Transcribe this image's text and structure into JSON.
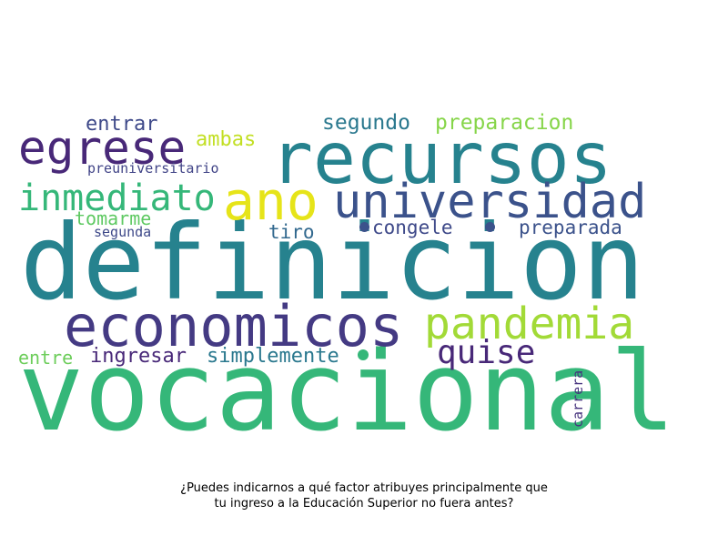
{
  "words": {
    "definicion": {
      "text": "definicion",
      "color": "#26828e"
    },
    "vocacional": {
      "text": "vocacional",
      "color": "#35b779"
    },
    "recursos": {
      "text": "recursos",
      "color": "#26828e"
    },
    "economicos": {
      "text": "economicos",
      "color": "#443a83"
    },
    "ano": {
      "text": "ano",
      "color": "#e6e419"
    },
    "universidad": {
      "text": "universidad",
      "color": "#3b528b"
    },
    "egrese": {
      "text": "egrese",
      "color": "#482878"
    },
    "pandemia": {
      "text": "pandemia",
      "color": "#a2da37"
    },
    "inmediato": {
      "text": "inmediato",
      "color": "#35b779"
    },
    "quise": {
      "text": "quise",
      "color": "#482878"
    },
    "segundo": {
      "text": "segundo",
      "color": "#2a788e"
    },
    "preparacion": {
      "text": "preparacion",
      "color": "#86d549"
    },
    "entrar": {
      "text": "entrar",
      "color": "#3e4989"
    },
    "ambas": {
      "text": "ambas",
      "color": "#c2df23"
    },
    "preuniversitario": {
      "text": "preuniversitario",
      "color": "#414487"
    },
    "tomarme": {
      "text": "tomarme",
      "color": "#5ec962"
    },
    "congele": {
      "text": "congele",
      "color": "#3e4989"
    },
    "preparada": {
      "text": "preparada",
      "color": "#3b528b"
    },
    "tiro": {
      "text": "tiro",
      "color": "#31688e"
    },
    "segunda": {
      "text": "segunda",
      "color": "#3e4989"
    },
    "entre": {
      "text": "entre",
      "color": "#6ccd5a"
    },
    "ingresar": {
      "text": "ingresar",
      "color": "#482878"
    },
    "simplemente": {
      "text": "simplemente",
      "color": "#2a788e"
    },
    "carrera": {
      "text": "carrera",
      "color": "#46337e"
    }
  },
  "dots": {
    "dot1": {
      "color": "#3b528b"
    },
    "dot2": {
      "color": "#3b528b"
    },
    "dot3": {
      "color": "#35b779"
    }
  },
  "caption": {
    "line1": "¿Puedes indicarnos a qué factor atribuyes principalmente que",
    "line2": "tu ingreso a la Educación Superior no fuera antes?"
  }
}
